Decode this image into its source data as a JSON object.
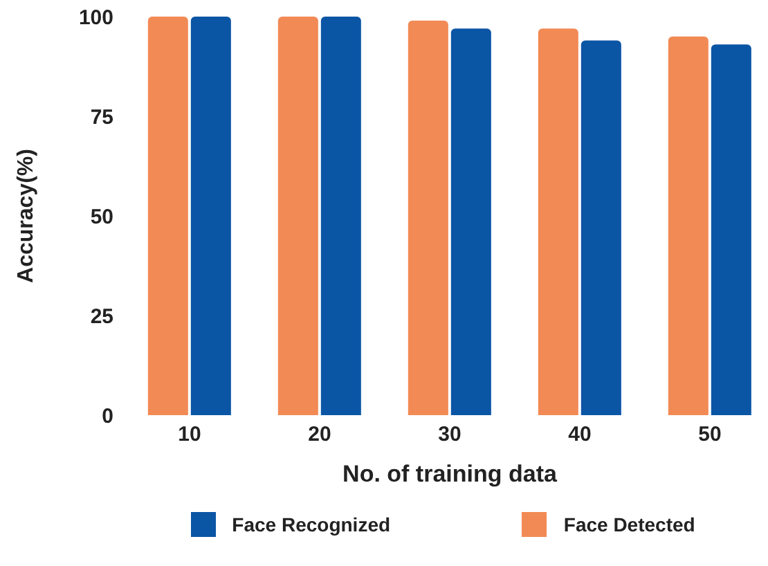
{
  "chart_data": {
    "type": "bar",
    "xlabel": "No. of training data",
    "ylabel": "Accuracy(%)",
    "categories": [
      "10",
      "20",
      "30",
      "40",
      "50"
    ],
    "series": [
      {
        "name": "Face Detected",
        "color": "#f28a55",
        "values": [
          100,
          100,
          99,
          97,
          95
        ]
      },
      {
        "name": "Face Recognized",
        "color": "#0b55a5",
        "values": [
          100,
          100,
          97,
          94,
          93
        ]
      }
    ],
    "ylim": [
      0,
      100
    ],
    "yticks": [
      0,
      25,
      50,
      75,
      100
    ],
    "legend": "bottom"
  }
}
